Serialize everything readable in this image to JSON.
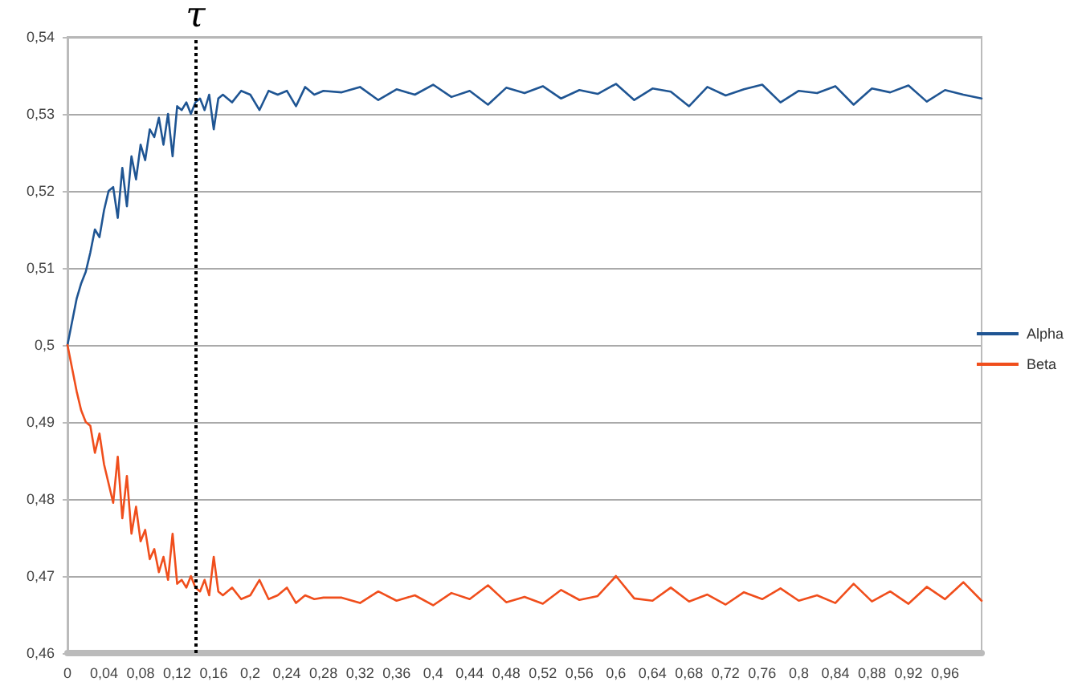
{
  "chart_data": {
    "type": "line",
    "x": [
      0,
      0.005,
      0.01,
      0.015,
      0.02,
      0.025,
      0.03,
      0.035,
      0.04,
      0.045,
      0.05,
      0.055,
      0.06,
      0.065,
      0.07,
      0.075,
      0.08,
      0.085,
      0.09,
      0.095,
      0.1,
      0.105,
      0.11,
      0.115,
      0.12,
      0.125,
      0.13,
      0.135,
      0.14,
      0.145,
      0.15,
      0.155,
      0.16,
      0.165,
      0.17,
      0.18,
      0.19,
      0.2,
      0.21,
      0.22,
      0.23,
      0.24,
      0.25,
      0.26,
      0.27,
      0.28,
      0.3,
      0.32,
      0.34,
      0.36,
      0.38,
      0.4,
      0.42,
      0.44,
      0.46,
      0.48,
      0.5,
      0.52,
      0.54,
      0.56,
      0.58,
      0.6,
      0.62,
      0.64,
      0.66,
      0.68,
      0.7,
      0.72,
      0.74,
      0.76,
      0.78,
      0.8,
      0.82,
      0.84,
      0.86,
      0.88,
      0.9,
      0.92,
      0.94,
      0.96,
      0.98,
      1.0
    ],
    "series": [
      {
        "name": "Alpha",
        "color": "#1f5593",
        "values": [
          0.5,
          0.503,
          0.506,
          0.508,
          0.5095,
          0.512,
          0.515,
          0.514,
          0.5175,
          0.52,
          0.5205,
          0.5165,
          0.523,
          0.518,
          0.5245,
          0.5215,
          0.526,
          0.524,
          0.528,
          0.527,
          0.5295,
          0.526,
          0.53,
          0.5245,
          0.531,
          0.5305,
          0.5315,
          0.53,
          0.5315,
          0.532,
          0.5305,
          0.5325,
          0.528,
          0.532,
          0.5325,
          0.5315,
          0.533,
          0.5325,
          0.5305,
          0.533,
          0.5325,
          0.533,
          0.531,
          0.5335,
          0.5325,
          0.533,
          0.5328,
          0.5335,
          0.5318,
          0.5332,
          0.5325,
          0.5338,
          0.5322,
          0.533,
          0.5312,
          0.5334,
          0.5327,
          0.5336,
          0.532,
          0.5331,
          0.5326,
          0.5339,
          0.5318,
          0.5333,
          0.5329,
          0.531,
          0.5335,
          0.5324,
          0.5332,
          0.5338,
          0.5315,
          0.533,
          0.5327,
          0.5336,
          0.5312,
          0.5333,
          0.5328,
          0.5337,
          0.5316,
          0.5331,
          0.5325,
          0.532
        ]
      },
      {
        "name": "Beta",
        "color": "#f04e1c",
        "values": [
          0.5,
          0.497,
          0.494,
          0.4915,
          0.49,
          0.4895,
          0.486,
          0.4885,
          0.4845,
          0.482,
          0.4795,
          0.4855,
          0.4775,
          0.483,
          0.4755,
          0.479,
          0.4745,
          0.476,
          0.4722,
          0.4735,
          0.4705,
          0.4725,
          0.4695,
          0.4755,
          0.469,
          0.4695,
          0.4685,
          0.47,
          0.4685,
          0.468,
          0.4695,
          0.4675,
          0.4725,
          0.468,
          0.4675,
          0.4685,
          0.467,
          0.4675,
          0.4695,
          0.467,
          0.4675,
          0.4685,
          0.4665,
          0.4675,
          0.467,
          0.4672,
          0.4672,
          0.4665,
          0.468,
          0.4668,
          0.4675,
          0.4662,
          0.4678,
          0.467,
          0.4688,
          0.4666,
          0.4673,
          0.4664,
          0.4682,
          0.4669,
          0.4674,
          0.47,
          0.4671,
          0.4668,
          0.4685,
          0.4667,
          0.4676,
          0.4663,
          0.4679,
          0.467,
          0.4684,
          0.4668,
          0.4675,
          0.4665,
          0.469,
          0.4667,
          0.468,
          0.4664,
          0.4686,
          0.467,
          0.4692,
          0.4668
        ]
      }
    ],
    "xlim": [
      0,
      1
    ],
    "xticks": [
      {
        "value": 0,
        "label": "0"
      },
      {
        "value": 0.04,
        "label": "0,04"
      },
      {
        "value": 0.08,
        "label": "0,08"
      },
      {
        "value": 0.12,
        "label": "0,12"
      },
      {
        "value": 0.16,
        "label": "0,16"
      },
      {
        "value": 0.2,
        "label": "0,2"
      },
      {
        "value": 0.24,
        "label": "0,24"
      },
      {
        "value": 0.28,
        "label": "0,28"
      },
      {
        "value": 0.32,
        "label": "0,32"
      },
      {
        "value": 0.36,
        "label": "0,36"
      },
      {
        "value": 0.4,
        "label": "0,4"
      },
      {
        "value": 0.44,
        "label": "0,44"
      },
      {
        "value": 0.48,
        "label": "0,48"
      },
      {
        "value": 0.52,
        "label": "0,52"
      },
      {
        "value": 0.56,
        "label": "0,56"
      },
      {
        "value": 0.6,
        "label": "0,6"
      },
      {
        "value": 0.64,
        "label": "0,64"
      },
      {
        "value": 0.68,
        "label": "0,68"
      },
      {
        "value": 0.72,
        "label": "0,72"
      },
      {
        "value": 0.76,
        "label": "0,76"
      },
      {
        "value": 0.8,
        "label": "0,8"
      },
      {
        "value": 0.84,
        "label": "0,84"
      },
      {
        "value": 0.88,
        "label": "0,88"
      },
      {
        "value": 0.92,
        "label": "0,92"
      },
      {
        "value": 0.96,
        "label": "0,96"
      }
    ],
    "ylim": [
      0.46,
      0.54
    ],
    "yticks": [
      {
        "value": 0.46,
        "label": "0,46"
      },
      {
        "value": 0.47,
        "label": "0,47"
      },
      {
        "value": 0.48,
        "label": "0,48"
      },
      {
        "value": 0.49,
        "label": "0,49"
      },
      {
        "value": 0.5,
        "label": "0,5"
      },
      {
        "value": 0.51,
        "label": "0,51"
      },
      {
        "value": 0.52,
        "label": "0,52"
      },
      {
        "value": 0.53,
        "label": "0,53"
      },
      {
        "value": 0.54,
        "label": "0,54"
      }
    ],
    "ref_lines": [
      {
        "axis": "x",
        "value": 0.142,
        "label": "τ",
        "color": "#000000",
        "line_style": "dotted"
      }
    ],
    "grid": "y",
    "legend": "right",
    "marker": "none",
    "line_style": "solid"
  }
}
